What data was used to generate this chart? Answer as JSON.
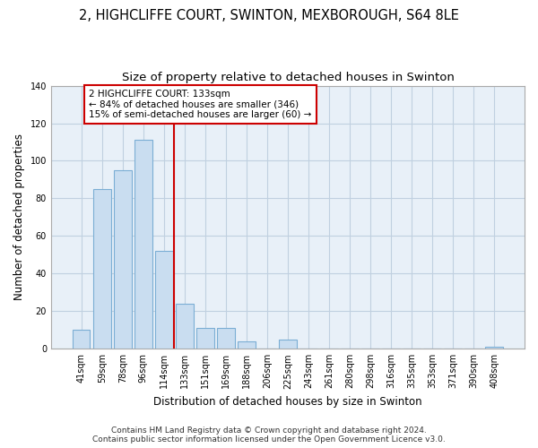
{
  "title": "2, HIGHCLIFFE COURT, SWINTON, MEXBOROUGH, S64 8LE",
  "subtitle": "Size of property relative to detached houses in Swinton",
  "xlabel": "Distribution of detached houses by size in Swinton",
  "ylabel": "Number of detached properties",
  "bar_labels": [
    "41sqm",
    "59sqm",
    "78sqm",
    "96sqm",
    "114sqm",
    "133sqm",
    "151sqm",
    "169sqm",
    "188sqm",
    "206sqm",
    "225sqm",
    "243sqm",
    "261sqm",
    "280sqm",
    "298sqm",
    "316sqm",
    "335sqm",
    "353sqm",
    "371sqm",
    "390sqm",
    "408sqm"
  ],
  "bar_values": [
    10,
    85,
    95,
    111,
    52,
    24,
    11,
    11,
    4,
    0,
    5,
    0,
    0,
    0,
    0,
    0,
    0,
    0,
    0,
    0,
    1
  ],
  "bar_color": "#c9ddf0",
  "bar_edge_color": "#7baed4",
  "vline_x": 4.5,
  "vline_color": "#cc0000",
  "annotation_line1": "2 HIGHCLIFFE COURT: 133sqm",
  "annotation_line2": "← 84% of detached houses are smaller (346)",
  "annotation_line3": "15% of semi-detached houses are larger (60) →",
  "annotation_box_color": "#ffffff",
  "annotation_box_edge_color": "#cc0000",
  "ylim": [
    0,
    140
  ],
  "yticks": [
    0,
    20,
    40,
    60,
    80,
    100,
    120,
    140
  ],
  "footer_line1": "Contains HM Land Registry data © Crown copyright and database right 2024.",
  "footer_line2": "Contains public sector information licensed under the Open Government Licence v3.0.",
  "bg_color": "#ffffff",
  "plot_bg_color": "#e8f0f8",
  "grid_color": "#c0d0e0",
  "title_fontsize": 10.5,
  "subtitle_fontsize": 9.5,
  "axis_label_fontsize": 8.5,
  "tick_fontsize": 7,
  "annotation_fontsize": 7.5,
  "footer_fontsize": 6.5
}
